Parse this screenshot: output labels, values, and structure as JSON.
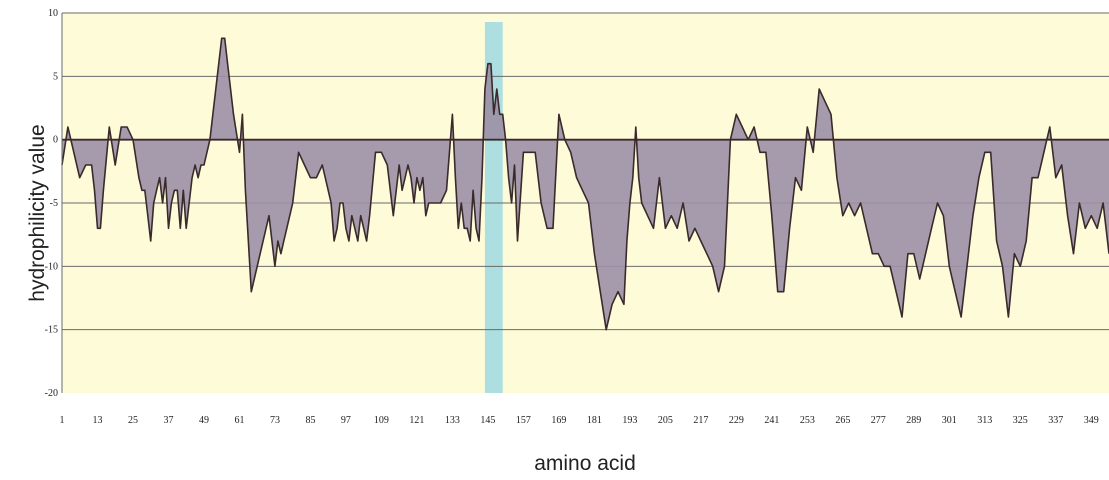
{
  "chart_data": {
    "type": "area",
    "xlabel": "amino acid",
    "ylabel": "hydrophilicity value",
    "ylim": [
      -20,
      10
    ],
    "xlim": [
      1,
      355
    ],
    "y_ticks": [
      "10",
      "5",
      "0",
      "-5",
      "-10",
      "-15",
      "-20"
    ],
    "x_ticks": [
      "1",
      "13",
      "25",
      "37",
      "49",
      "61",
      "73",
      "85",
      "97",
      "109",
      "121",
      "133",
      "145",
      "157",
      "169",
      "181",
      "193",
      "205",
      "217",
      "229",
      "241",
      "253",
      "265",
      "277",
      "289",
      "301",
      "313",
      "325",
      "337",
      "349"
    ],
    "grid": true,
    "highlight_region": [
      145,
      149
    ],
    "colors": {
      "plot_background": "#fefbd9",
      "fill": "#9c90a6",
      "line": "#3a2a2a",
      "highlight": "#9fd8e0",
      "grid": "#6a6a6a"
    },
    "series": [
      {
        "x": [
          1,
          3,
          5,
          7,
          9,
          11,
          12,
          13,
          14,
          15,
          17,
          19,
          21,
          23,
          25,
          27,
          28,
          29,
          30,
          31,
          32,
          33,
          34,
          35,
          36,
          37,
          38,
          39,
          40,
          41,
          42,
          43,
          45,
          46,
          47,
          48,
          49,
          51,
          53,
          55,
          56,
          57,
          59,
          61,
          62,
          63,
          65,
          67,
          69,
          71,
          73,
          74,
          75,
          76,
          77,
          79,
          81,
          83,
          85,
          87,
          89,
          91,
          92,
          93,
          94,
          95,
          96,
          97,
          98,
          99,
          100,
          101,
          102,
          103,
          104,
          105,
          107,
          109,
          111,
          113,
          115,
          116,
          117,
          118,
          119,
          120,
          121,
          122,
          123,
          124,
          125,
          126,
          127,
          129,
          131,
          133,
          134,
          135,
          136,
          137,
          138,
          139,
          140,
          141,
          142,
          143,
          144,
          145,
          146,
          147,
          148,
          149,
          150,
          151,
          152,
          153,
          154,
          155,
          157,
          159,
          161,
          163,
          165,
          167,
          169,
          171,
          173,
          175,
          177,
          179,
          181,
          183,
          185,
          187,
          189,
          191,
          192,
          193,
          194,
          195,
          196,
          197,
          199,
          201,
          203,
          205,
          207,
          209,
          211,
          213,
          215,
          217,
          219,
          221,
          223,
          225,
          227,
          229,
          231,
          233,
          235,
          237,
          239,
          241,
          243,
          245,
          247,
          249,
          251,
          253,
          255,
          257,
          259,
          261,
          263,
          265,
          267,
          269,
          271,
          273,
          275,
          277,
          279,
          281,
          283,
          285,
          287,
          289,
          291,
          293,
          295,
          297,
          299,
          301,
          303,
          305,
          307,
          309,
          311,
          313,
          315,
          317,
          319,
          321,
          323,
          325,
          327,
          329,
          331,
          333,
          335,
          337,
          339,
          341,
          343,
          345,
          347,
          349,
          351,
          353,
          355
        ],
        "y": [
          -2,
          1,
          -1,
          -3,
          -2,
          -2,
          -4,
          -7,
          -7,
          -4,
          1,
          -2,
          1,
          1,
          0,
          -3,
          -4,
          -4,
          -6,
          -8,
          -5,
          -4,
          -3,
          -5,
          -3,
          -7,
          -5,
          -4,
          -4,
          -7,
          -4,
          -7,
          -3,
          -2,
          -3,
          -2,
          -2,
          0,
          4,
          8,
          8,
          6,
          2,
          -1,
          2,
          -4,
          -12,
          -10,
          -8,
          -6,
          -10,
          -8,
          -9,
          -8,
          -7,
          -5,
          -1,
          -2,
          -3,
          -3,
          -2,
          -4,
          -5,
          -8,
          -7,
          -5,
          -5,
          -7,
          -8,
          -6,
          -7,
          -8,
          -6,
          -7,
          -8,
          -6,
          -1,
          -1,
          -2,
          -6,
          -2,
          -4,
          -3,
          -2,
          -3,
          -5,
          -3,
          -4,
          -3,
          -6,
          -5,
          -5,
          -5,
          -5,
          -4,
          2,
          -3,
          -7,
          -5,
          -7,
          -7,
          -8,
          -4,
          -7,
          -8,
          -3,
          4,
          6,
          6,
          2,
          4,
          2,
          2,
          0,
          -3,
          -5,
          -2,
          -8,
          -1,
          -1,
          -1,
          -5,
          -7,
          -7,
          2,
          0,
          -1,
          -3,
          -4,
          -5,
          -9,
          -12,
          -15,
          -13,
          -12,
          -13,
          -8,
          -5,
          -3,
          1,
          -3,
          -5,
          -6,
          -7,
          -3,
          -7,
          -6,
          -7,
          -5,
          -8,
          -7,
          -8,
          -9,
          -10,
          -12,
          -10,
          0,
          2,
          1,
          0,
          1,
          -1,
          -1,
          -6,
          -12,
          -12,
          -7,
          -3,
          -4,
          1,
          -1,
          4,
          3,
          2,
          -3,
          -6,
          -5,
          -6,
          -5,
          -7,
          -9,
          -9,
          -10,
          -10,
          -12,
          -14,
          -9,
          -9,
          -11,
          -9,
          -7,
          -5,
          -6,
          -10,
          -12,
          -14,
          -10,
          -6,
          -3,
          -1,
          -1,
          -8,
          -10,
          -14,
          -9,
          -10,
          -8,
          -3,
          -3,
          -1,
          1,
          -3,
          -2,
          -6,
          -9,
          -5,
          -7,
          -6,
          -7,
          -5,
          -9
        ]
      }
    ]
  }
}
